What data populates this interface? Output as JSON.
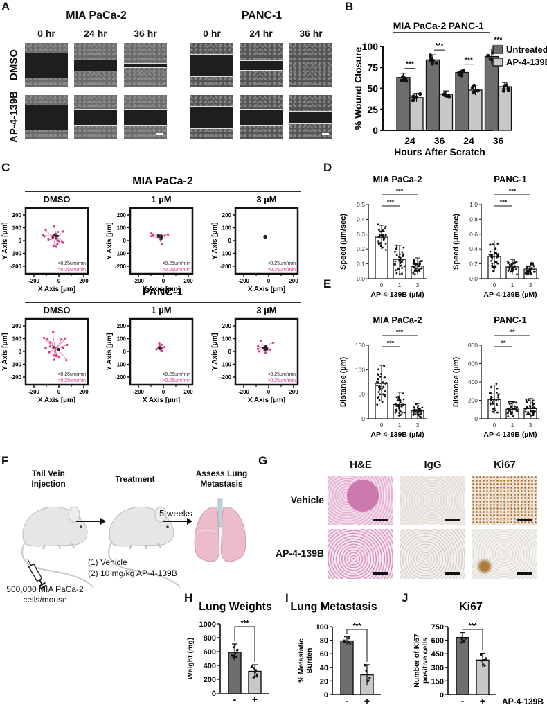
{
  "figure": {
    "panels": {
      "A": {
        "letter": "A",
        "cell_lines": [
          "MIA PaCa-2",
          "PANC-1"
        ],
        "timepoints": [
          "0 hr",
          "24 hr",
          "36 hr"
        ],
        "rows": [
          "DMSO",
          "AP-4-139B"
        ],
        "gap_fraction": {
          "MIA PaCa-2": {
            "DMSO": [
              0.55,
              0.25,
              0.08
            ],
            "AP-4-139B": [
              0.55,
              0.38,
              0.35
            ]
          },
          "PANC-1": {
            "DMSO": [
              0.48,
              0.22,
              0.0
            ],
            "AP-4-139B": [
              0.5,
              0.38,
              0.28
            ]
          }
        }
      },
      "B": {
        "letter": "B"
      },
      "C": {
        "letter": "C",
        "groups": [
          "MIA PaCa-2",
          "PANC-1"
        ],
        "conditions": [
          "DMSO",
          "1 µM",
          "3 µM"
        ],
        "x_label": "X Axis [µm]",
        "y_label": "Y Axis [µm]",
        "ticks": [
          "-200",
          "-100",
          "0",
          "100",
          "200"
        ],
        "xticks": [
          "-200",
          "0",
          "200"
        ],
        "legend_slow": "<0.25um/min",
        "legend_fast": ">0.25um/min",
        "slow_color": "#222222",
        "fast_color": "#e0338a"
      },
      "D": {
        "letter": "D"
      },
      "E": {
        "letter": "E"
      },
      "F": {
        "letter": "F",
        "step1": "Tail Vein\nInjection",
        "step1_l1": "Tail Vein",
        "step1_l2": "Injection",
        "step2": "Treatment",
        "step3_l1": "Assess Lung",
        "step3_l2": "Metastasis",
        "duration": "5 weeks",
        "treat1": "(1) Vehicle",
        "treat2": "(2) 10 mg/kg AP-4-139B",
        "cells_l1": "500,000 MIA PaCa-2",
        "cells_l2": "cells/mouse"
      },
      "G": {
        "letter": "G",
        "stains": [
          "H&E",
          "IgG",
          "Ki67"
        ],
        "rows": [
          "Vehicle",
          "AP-4-139B"
        ]
      },
      "H": {
        "letter": "H"
      },
      "I": {
        "letter": "I"
      },
      "J": {
        "letter": "J",
        "treatment_label": "AP-4-139B"
      }
    }
  },
  "chart_data": [
    {
      "id": "B",
      "type": "bar",
      "title": "",
      "group_labels": [
        "MIA PaCa-2",
        "PANC-1"
      ],
      "categories": [
        "24",
        "36",
        "24",
        "36"
      ],
      "xlabel": "Hours After Scratch",
      "ylabel": "% Wound Closure",
      "ylim": [
        0,
        100
      ],
      "yticks": [
        0,
        25,
        50,
        75,
        100
      ],
      "series": [
        {
          "name": "Untreated",
          "color": "#6e6e6e",
          "values": [
            63,
            84,
            69,
            88
          ],
          "err": [
            5,
            6,
            4,
            9
          ]
        },
        {
          "name": "AP-4-139B",
          "color": "#c8c8c8",
          "values": [
            39,
            43,
            48,
            52
          ],
          "err": [
            5,
            4,
            6,
            5
          ]
        }
      ],
      "significance": [
        "***",
        "***",
        "***",
        "***"
      ],
      "legend_position": "right"
    },
    {
      "id": "D-MIA",
      "type": "bar",
      "title": "MIA PaCa-2",
      "categories": [
        "0",
        "1",
        "3"
      ],
      "values": [
        0.28,
        0.13,
        0.085
      ],
      "err": [
        0.08,
        0.095,
        0.055
      ],
      "xlabel": "AP-4-139B (µM)",
      "ylabel": "Speed (µm/sec)",
      "ylim": [
        0,
        0.5
      ],
      "yticks": [
        "0.0",
        "0.1",
        "0.2",
        "0.3",
        "0.4",
        "0.5"
      ],
      "significance": [
        {
          "from": "0",
          "to": "1",
          "label": "***"
        },
        {
          "from": "0",
          "to": "3",
          "label": "***"
        }
      ]
    },
    {
      "id": "D-PANC",
      "type": "bar",
      "title": "PANC-1",
      "categories": [
        "0",
        "1",
        "3"
      ],
      "values": [
        0.3,
        0.16,
        0.13
      ],
      "err": [
        0.21,
        0.1,
        0.08
      ],
      "xlabel": "AP-4-139B (µM)",
      "ylabel": "Speed (µm/sec)",
      "ylim": [
        0,
        1.0
      ],
      "yticks": [
        "0.0",
        "0.2",
        "0.4",
        "0.6",
        "0.8",
        "1.0"
      ],
      "significance": [
        {
          "from": "0",
          "to": "1",
          "label": "***"
        },
        {
          "from": "0",
          "to": "3",
          "label": "***"
        }
      ]
    },
    {
      "id": "E-MIA",
      "type": "bar",
      "title": "MIA PaCa-2",
      "categories": [
        "0",
        "1",
        "3"
      ],
      "values": [
        72,
        29,
        16
      ],
      "err": [
        37,
        25,
        15
      ],
      "xlabel": "AP-4-139B (µM)",
      "ylabel": "Distance (µm)",
      "ylim": [
        0,
        150
      ],
      "yticks": [
        "0",
        "50",
        "100",
        "150"
      ],
      "significance": [
        {
          "from": "0",
          "to": "1",
          "label": "***"
        },
        {
          "from": "0",
          "to": "3",
          "label": "***"
        }
      ]
    },
    {
      "id": "E-PANC",
      "type": "bar",
      "title": "PANC-1",
      "categories": [
        "0",
        "1",
        "3"
      ],
      "values": [
        210,
        105,
        110
      ],
      "err": [
        155,
        80,
        110
      ],
      "xlabel": "AP-4-139B (µM)",
      "ylabel": "Distance (µm)",
      "ylim": [
        0,
        800
      ],
      "yticks": [
        "0",
        "200",
        "400",
        "600",
        "800"
      ],
      "significance": [
        {
          "from": "0",
          "to": "1",
          "label": "**"
        },
        {
          "from": "0",
          "to": "3",
          "label": "**"
        }
      ]
    },
    {
      "id": "H",
      "type": "bar",
      "title": "Lung Weights",
      "categories": [
        "-",
        "+"
      ],
      "values": [
        590,
        315
      ],
      "err": [
        120,
        95
      ],
      "colors": [
        "#6e6e6e",
        "#c8c8c8"
      ],
      "ylabel": "Weight (mg)",
      "ylim": [
        0,
        1000
      ],
      "yticks": [
        "0",
        "200",
        "400",
        "600",
        "800",
        "1000"
      ],
      "significance": "***"
    },
    {
      "id": "I",
      "type": "bar",
      "title": "Lung Metastasis",
      "categories": [
        "-",
        "+"
      ],
      "values": [
        79,
        29
      ],
      "err": [
        6,
        15
      ],
      "colors": [
        "#6e6e6e",
        "#c8c8c8"
      ],
      "ylabel": "% Metastatic Burden",
      "ylabel_l1": "% Metastatic",
      "ylabel_l2": "Burden",
      "ylim": [
        0,
        100
      ],
      "yticks": [
        "0",
        "20",
        "40",
        "60",
        "80",
        "100"
      ],
      "significance": "***"
    },
    {
      "id": "J",
      "type": "bar",
      "title": "Ki67",
      "categories": [
        "-",
        "+"
      ],
      "values": [
        630,
        380
      ],
      "err": [
        55,
        75
      ],
      "colors": [
        "#6e6e6e",
        "#c8c8c8"
      ],
      "ylabel": "Number of Ki67 positive cells",
      "ylabel_l1": "Number of Ki67",
      "ylabel_l2": "positive cells",
      "ylim": [
        0,
        750
      ],
      "yticks": [
        "0",
        "150",
        "300",
        "450",
        "600",
        "750"
      ],
      "significance": "***",
      "xlabel": "AP-4-139B"
    }
  ]
}
